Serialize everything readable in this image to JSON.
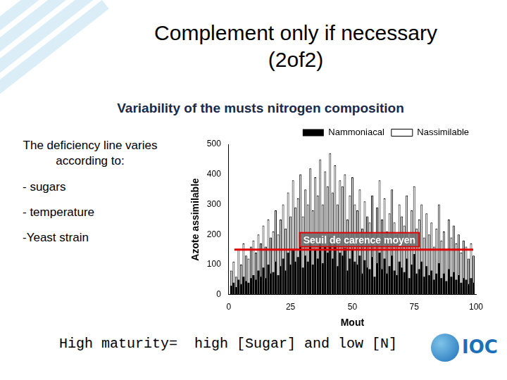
{
  "slide": {
    "title": [
      "Complement only if necessary",
      "(2of2)"
    ],
    "subtitle": "Variability of the musts nitrogen composition",
    "heading": "The deficiency line varies according to:",
    "bullets": [
      "- sugars",
      "- temperature",
      "-Yeast strain"
    ],
    "conclusion": "High maturity=  high [Sugar] and low [N]",
    "logo": "IOC"
  },
  "chart_data": {
    "type": "bar",
    "x_label": "Mout",
    "y_label": "Azote assimilable",
    "x": [
      1,
      2,
      3,
      4,
      5,
      6,
      7,
      8,
      9,
      10,
      11,
      12,
      13,
      14,
      15,
      16,
      17,
      18,
      19,
      20,
      21,
      22,
      23,
      24,
      25,
      26,
      27,
      28,
      29,
      30,
      31,
      32,
      33,
      34,
      35,
      36,
      37,
      38,
      39,
      40,
      41,
      42,
      43,
      44,
      45,
      46,
      47,
      48,
      49,
      50,
      51,
      52,
      53,
      54,
      55,
      56,
      57,
      58,
      59,
      60,
      61,
      62,
      63,
      64,
      65,
      66,
      67,
      68,
      69,
      70,
      71,
      72,
      73,
      74,
      75,
      76,
      77,
      78,
      79,
      80,
      81,
      82,
      83,
      84,
      85,
      86,
      87,
      88,
      89,
      90,
      91,
      92,
      93,
      94,
      95,
      96,
      97,
      98,
      99
    ],
    "series": [
      {
        "name": "Nassimilable",
        "color": "#ffffff",
        "values": [
          80,
          110,
          60,
          150,
          100,
          170,
          130,
          120,
          160,
          180,
          140,
          200,
          170,
          230,
          160,
          250,
          190,
          210,
          280,
          200,
          250,
          300,
          220,
          340,
          260,
          380,
          290,
          320,
          400,
          260,
          350,
          300,
          420,
          280,
          390,
          330,
          450,
          300,
          410,
          360,
          470,
          340,
          430,
          300,
          380,
          360,
          400,
          250,
          330,
          390,
          300,
          280,
          350,
          220,
          310,
          260,
          240,
          330,
          200,
          290,
          380,
          250,
          320,
          210,
          270,
          350,
          240,
          200,
          300,
          260,
          230,
          330,
          180,
          280,
          360,
          220,
          250,
          300,
          190,
          270,
          200,
          240,
          160,
          220,
          300,
          180,
          210,
          150,
          250,
          190,
          230,
          170,
          200,
          140,
          180,
          160,
          120,
          170,
          130
        ]
      },
      {
        "name": "Nammoniacal",
        "color": "#000000",
        "values": [
          30,
          40,
          25,
          50,
          35,
          60,
          45,
          40,
          55,
          65,
          50,
          80,
          60,
          90,
          55,
          100,
          70,
          75,
          110,
          65,
          95,
          120,
          80,
          140,
          100,
          150,
          110,
          125,
          160,
          90,
          130,
          110,
          170,
          100,
          150,
          120,
          180,
          105,
          160,
          140,
          190,
          120,
          170,
          95,
          140,
          130,
          155,
          80,
          120,
          150,
          110,
          100,
          130,
          70,
          115,
          90,
          85,
          125,
          60,
          105,
          140,
          85,
          120,
          70,
          95,
          130,
          80,
          65,
          110,
          90,
          75,
          120,
          55,
          100,
          135,
          70,
          85,
          110,
          60,
          95,
          65,
          80,
          50,
          70,
          105,
          55,
          70,
          45,
          85,
          60,
          75,
          50,
          65,
          40,
          55,
          50,
          35,
          55,
          40
        ]
      }
    ],
    "xlim": [
      0,
      100
    ],
    "xticks": [
      0,
      25,
      50,
      75,
      100
    ],
    "ylim": [
      0,
      500
    ],
    "yticks": [
      0,
      100,
      200,
      300,
      400,
      500
    ],
    "grid": false,
    "legend": "upper right",
    "annotations": [
      {
        "label": "Seuil de carence moyen",
        "y": 150,
        "color": "#e00000"
      }
    ]
  }
}
